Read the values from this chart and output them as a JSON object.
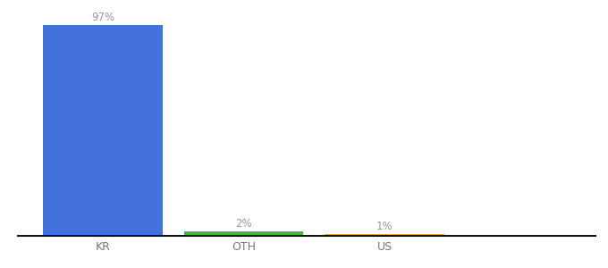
{
  "categories": [
    "KR",
    "OTH",
    "US"
  ],
  "values": [
    97,
    2,
    1
  ],
  "bar_colors": [
    "#4472db",
    "#3dba3d",
    "#f0a830"
  ],
  "labels": [
    "97%",
    "2%",
    "1%"
  ],
  "title_fontsize": 9,
  "label_fontsize": 8.5,
  "tick_fontsize": 9,
  "ylim": [
    0,
    105
  ],
  "background_color": "#ffffff",
  "bar_width": 0.85,
  "label_color": "#999999",
  "tick_color": "#777777",
  "spine_color": "#111111"
}
